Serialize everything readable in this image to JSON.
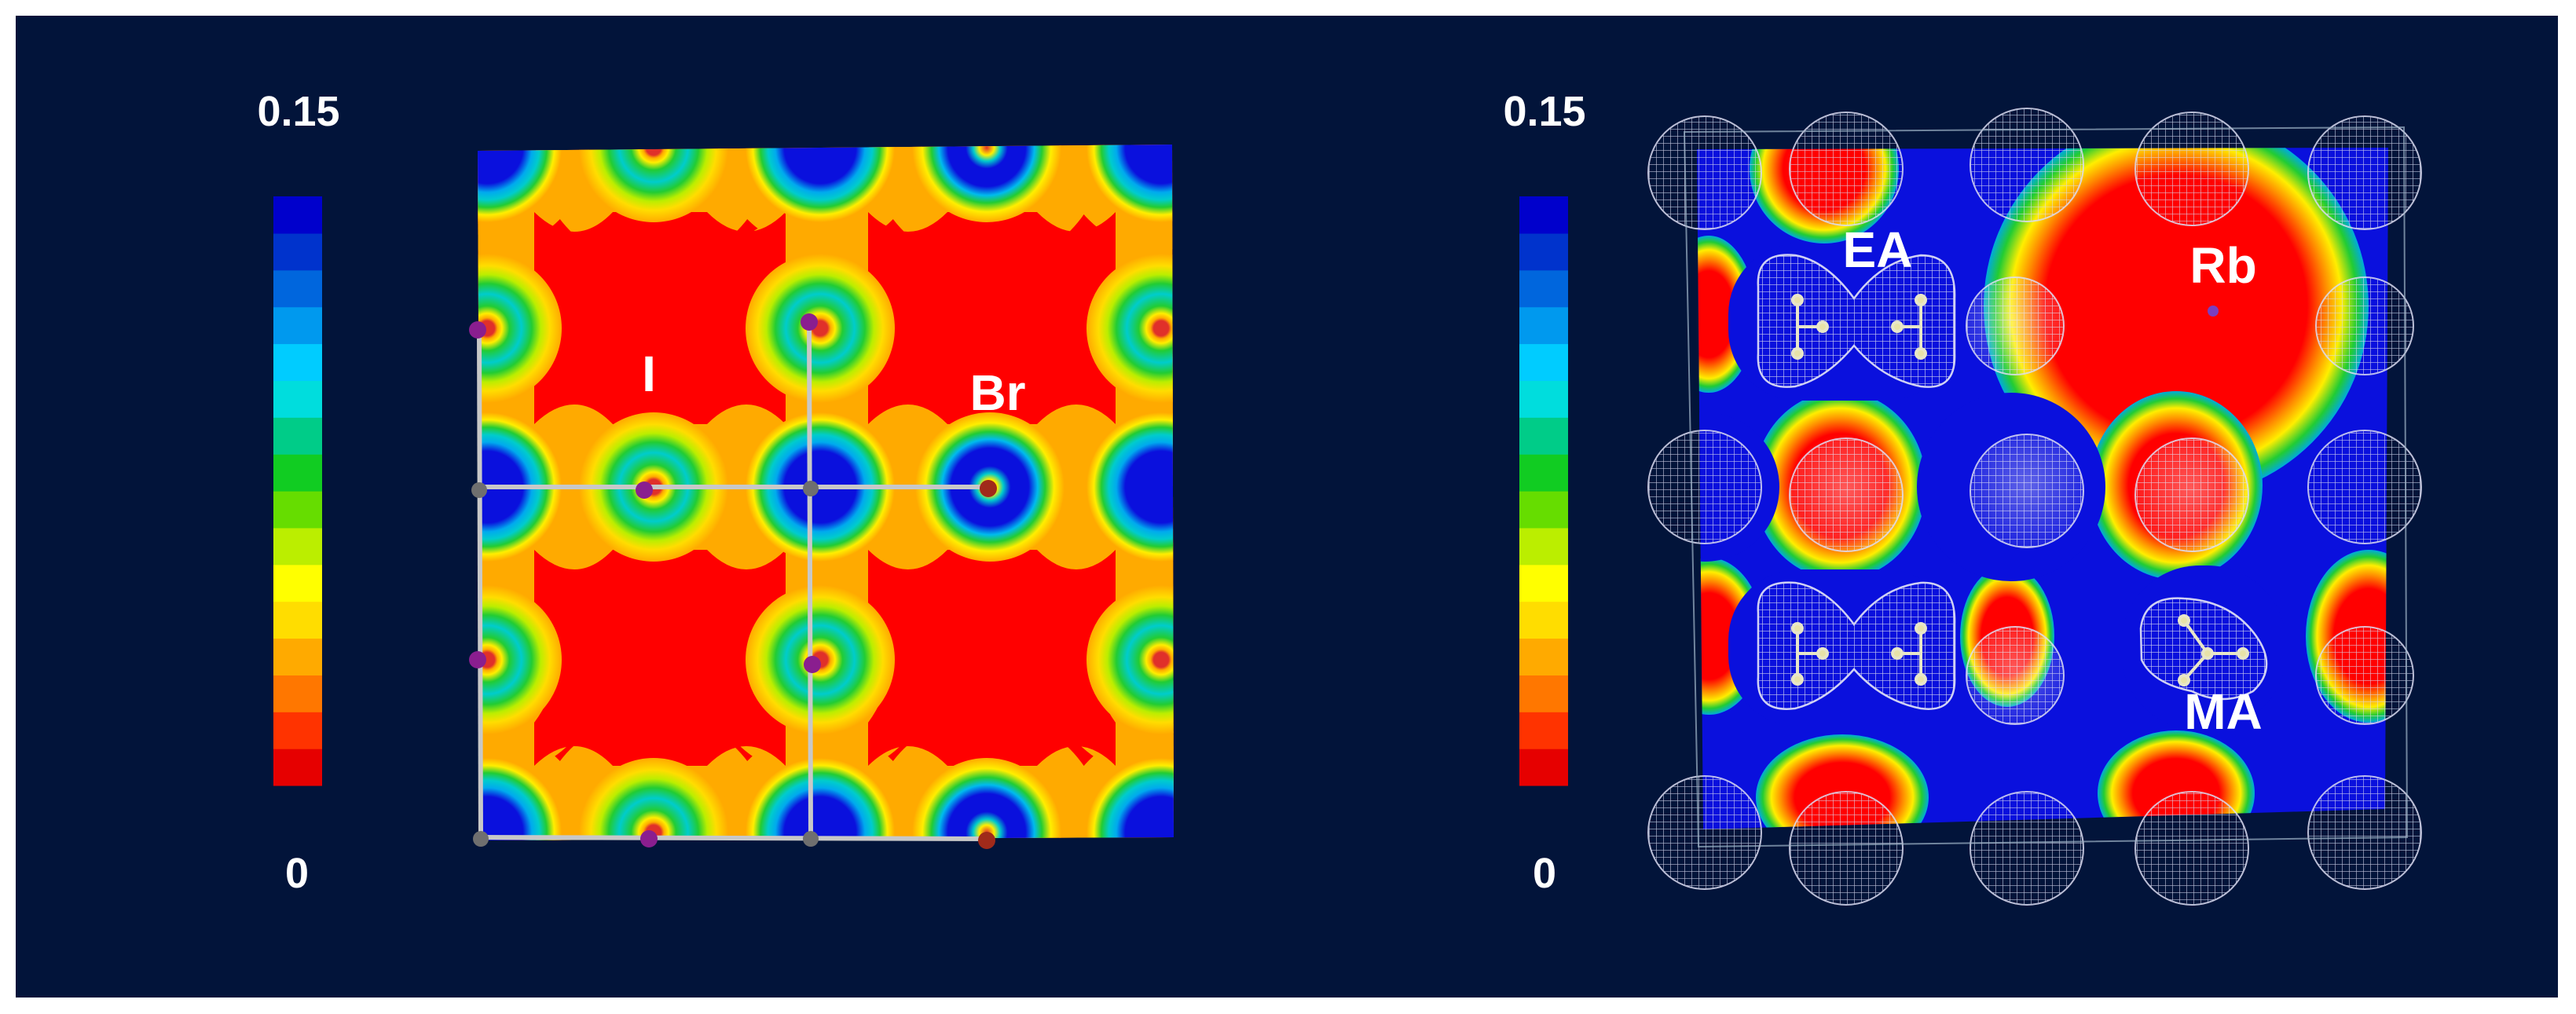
{
  "colors": {
    "background": "#02143a",
    "scale": [
      "#e60000",
      "#ff3300",
      "#ff7700",
      "#ffaa00",
      "#ffdd00",
      "#ffff00",
      "#bbee00",
      "#66dd00",
      "#11cc22",
      "#00cc88",
      "#00dddd",
      "#00ccff",
      "#0099ee",
      "#0066dd",
      "#0033cc",
      "#0000cc"
    ],
    "map_red": "#ff0000",
    "map_orange": "#ffaa00",
    "map_yellow": "#ffee00",
    "map_green": "#22cc33",
    "map_cyan": "#00cccc",
    "map_blue": "#0a10dd",
    "atom_iodine": "#8a1e8f",
    "atom_bromine": "#a02a1a",
    "atom_lead": "#6f6f6f",
    "atom_rb": "#7a3fbf",
    "bond": "#c8c8c8",
    "mesh": "#d8d8ee"
  },
  "panels": [
    {
      "scale_max": "0.15",
      "scale_min": "0",
      "labels": {
        "iodine": "I",
        "bromine": "Br"
      }
    },
    {
      "scale_max": "0.15",
      "scale_min": "0",
      "labels": {
        "ea": "EA",
        "rb": "Rb",
        "ma": "MA"
      }
    }
  ]
}
